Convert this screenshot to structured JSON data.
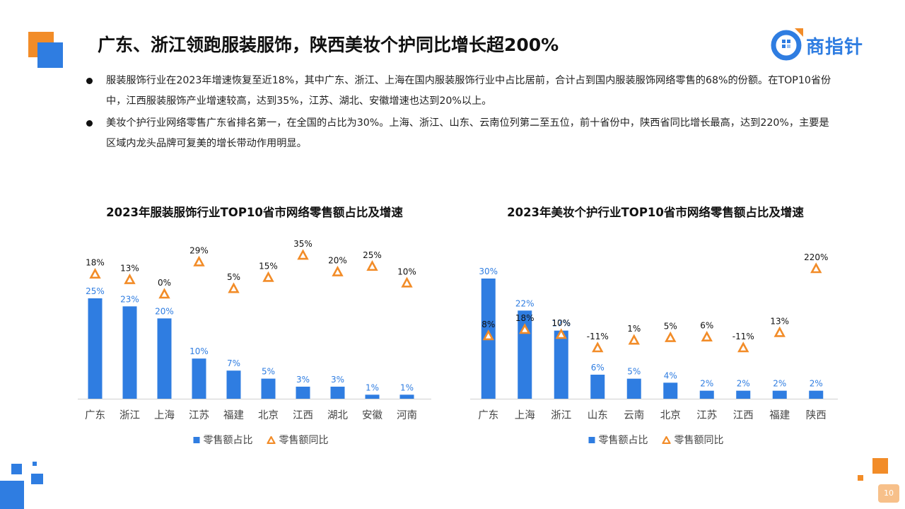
{
  "page": {
    "title": "广东、浙江领跑服装服饰，陕西美妆个护同比增长超200%",
    "logo_text": "商指针",
    "page_number": "10"
  },
  "bullets": [
    "服装服饰行业在2023年增速恢复至近18%，其中广东、浙江、上海在国内服装服饰行业中占比居前，合计占到国内服装服饰网络零售的68%的份额。在TOP10省份中，江西服装服饰产业增速较高，达到35%，江苏、湖北、安徽增速也达到20%以上。",
    "美妆个护行业网络零售广东省排名第一，在全国的占比为30%。上海、浙江、山东、云南位列第二至五位，前十省份中，陕西省同比增长最高，达到220%，主要是区域内龙头品牌可复美的增长带动作用明显。"
  ],
  "colors": {
    "bar": "#2f7de1",
    "growth_marker": "#f28c28",
    "accent_orange": "#f28c28",
    "accent_blue": "#2f7de1"
  },
  "chart_data": [
    {
      "type": "bar",
      "title": "2023年服装服饰行业TOP10省市网络零售额占比及增速",
      "categories": [
        "广东",
        "浙江",
        "上海",
        "江苏",
        "福建",
        "北京",
        "江西",
        "湖北",
        "安徽",
        "河南"
      ],
      "series": [
        {
          "name": "零售额占比",
          "type": "bar",
          "values": [
            25,
            23,
            20,
            10,
            7,
            5,
            3,
            3,
            1,
            1
          ],
          "labels": [
            "25%",
            "23%",
            "20%",
            "10%",
            "7%",
            "5%",
            "3%",
            "3%",
            "1%",
            "1%"
          ]
        },
        {
          "name": "零售额同比",
          "type": "marker",
          "values": [
            18,
            13,
            0,
            29,
            5,
            15,
            35,
            20,
            25,
            10
          ],
          "labels": [
            "18%",
            "13%",
            "0%",
            "29%",
            "5%",
            "15%",
            "35%",
            "20%",
            "25%",
            "10%"
          ]
        }
      ],
      "legend_position": "bottom",
      "grid": false
    },
    {
      "type": "bar",
      "title": "2023年美妆个护行业TOP10省市网络零售额占比及增速",
      "categories": [
        "广东",
        "上海",
        "浙江",
        "山东",
        "云南",
        "北京",
        "江苏",
        "江西",
        "福建",
        "陕西"
      ],
      "series": [
        {
          "name": "零售额占比",
          "type": "bar",
          "values": [
            30,
            22,
            17,
            6,
            5,
            4,
            2,
            2,
            2,
            2
          ],
          "labels": [
            "30%",
            "22%",
            "17%",
            "6%",
            "5%",
            "4%",
            "2%",
            "2%",
            "2%",
            "2%"
          ]
        },
        {
          "name": "零售额同比",
          "type": "marker",
          "values": [
            8,
            18,
            10,
            -11,
            1,
            5,
            6,
            -11,
            13,
            220
          ],
          "labels": [
            "8%",
            "18%",
            "10%",
            "-11%",
            "1%",
            "5%",
            "6%",
            "-11%",
            "13%",
            "220%"
          ]
        }
      ],
      "legend_position": "bottom",
      "grid": false
    }
  ]
}
